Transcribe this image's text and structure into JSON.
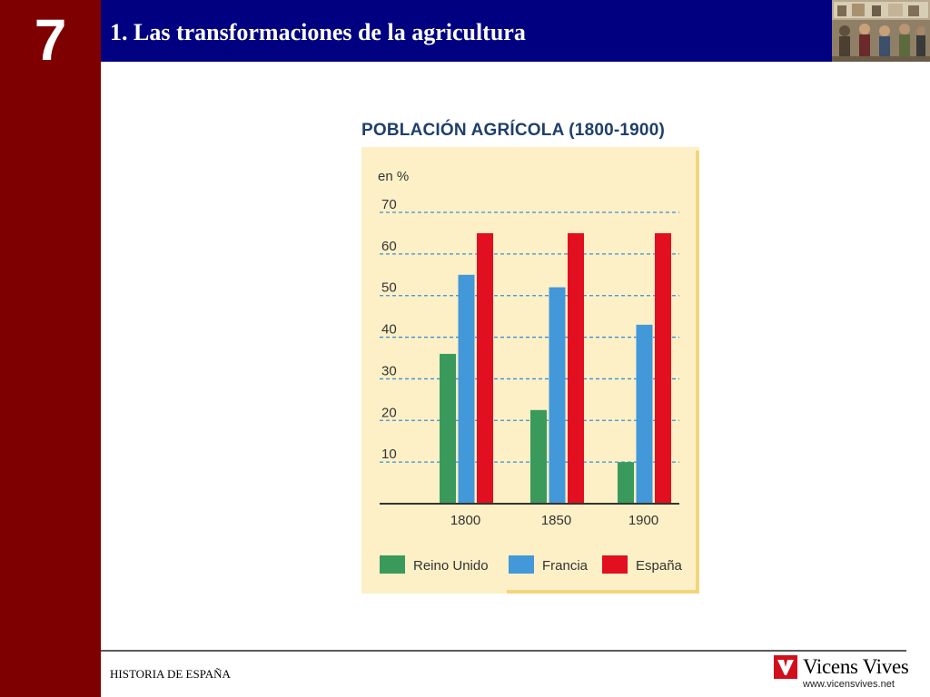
{
  "chapter": {
    "number": "7"
  },
  "header": {
    "title": "1. Las transformaciones de la agricultura"
  },
  "footer": {
    "text": "HISTORIA DE ESPAÑA"
  },
  "brand": {
    "name": "Vicens Vives",
    "url": "www.vicensvives.net",
    "logo_icon": "vicens-vives-v-logo-icon",
    "color": "#d0101c"
  },
  "colors": {
    "sidebar": "#7f0000",
    "header": "#000080",
    "chart_bg": "#fdf0c6",
    "grid": "#3a8fd6"
  },
  "chart_data": {
    "type": "bar",
    "title": "POBLACIÓN AGRÍCOLA (1800-1900)",
    "ylabel": "en %",
    "xlabel": "",
    "categories": [
      "1800",
      "1850",
      "1900"
    ],
    "series": [
      {
        "name": "Reino Unido",
        "color": "#3a9a5c",
        "values": [
          36,
          22.5,
          10
        ]
      },
      {
        "name": "Francia",
        "color": "#4298d9",
        "values": [
          55,
          52,
          43
        ]
      },
      {
        "name": "España",
        "color": "#e10f1f",
        "values": [
          65,
          65,
          65
        ]
      }
    ],
    "ylim": [
      0,
      70
    ],
    "yticks": [
      "10",
      "20",
      "30",
      "40",
      "50",
      "60",
      "70"
    ],
    "grid": true,
    "legend_position": "bottom"
  }
}
